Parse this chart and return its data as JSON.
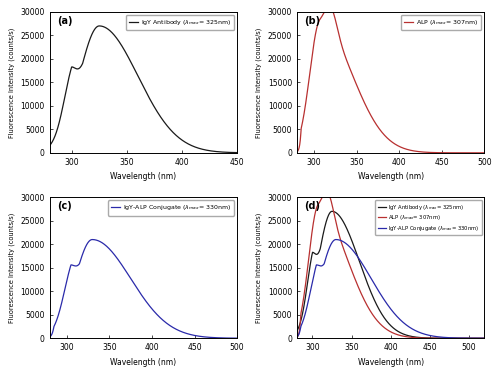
{
  "panel_labels": [
    "(a)",
    "(b)",
    "(c)",
    "(d)"
  ],
  "igy_color": "#1a1a1a",
  "alp_color": "#b83030",
  "conj_color": "#2a2aaa",
  "ylabel": "Fluorescence Intensity (counts/s)",
  "xlabel": "Wavelength (nm)",
  "igy_xlim": [
    280,
    450
  ],
  "igy_ylim": [
    0,
    30000
  ],
  "alp_xlim": [
    280,
    500
  ],
  "alp_ylim": [
    0,
    30000
  ],
  "conj_xlim": [
    280,
    500
  ],
  "conj_ylim": [
    0,
    30000
  ],
  "comp_xlim": [
    280,
    520
  ],
  "comp_ylim": [
    0,
    30000
  ],
  "igy_xticks": [
    300,
    350,
    400,
    450
  ],
  "alp_xticks": [
    300,
    350,
    400,
    450,
    500
  ],
  "conj_xticks": [
    300,
    350,
    400,
    450,
    500
  ],
  "comp_xticks": [
    300,
    350,
    400,
    450,
    500
  ]
}
